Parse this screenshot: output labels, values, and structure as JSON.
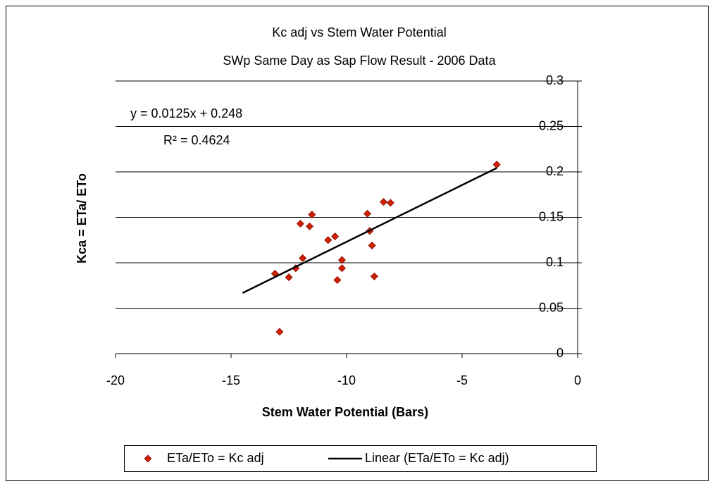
{
  "chart_data": {
    "type": "scatter",
    "title": "Kc adj vs Stem Water Potential",
    "subtitle": "SWp Same Day as Sap Flow Result - 2006 Data",
    "x_label": "Stem Water Potential (Bars)",
    "y_label": "Kca = ETa/ ETo",
    "annotations": [
      "y = 0.0125x + 0.248",
      "R² = 0.4624"
    ],
    "xlim": [
      -20,
      0
    ],
    "xticks": [
      -20,
      -15,
      -10,
      -5,
      0
    ],
    "ylim": [
      0,
      0.3
    ],
    "yticks": [
      0,
      0.05,
      0.1,
      0.15,
      0.2,
      0.25,
      0.3
    ],
    "grid": true,
    "legend": "bottom",
    "series": [
      {
        "name": "ETa/ETo = Kc adj",
        "color": "#cc2200",
        "marker": "diamond",
        "x": [
          -3.5,
          -8.4,
          -8.1,
          -9.1,
          -11.5,
          -12.0,
          -11.6,
          -9.0,
          -10.5,
          -10.8,
          -8.9,
          -11.9,
          -10.2,
          -10.2,
          -12.2,
          -13.1,
          -12.5,
          -8.8,
          -10.4,
          -12.9
        ],
        "values": [
          0.208,
          0.167,
          0.166,
          0.154,
          0.153,
          0.143,
          0.14,
          0.135,
          0.129,
          0.125,
          0.119,
          0.105,
          0.103,
          0.094,
          0.094,
          0.088,
          0.084,
          0.085,
          0.081,
          0.024
        ]
      },
      {
        "name": "Linear (ETa/ETo = Kc adj)",
        "color": "#000000",
        "marker": "line",
        "x": [
          -14.5,
          -3.5
        ],
        "values": [
          0.0668,
          0.2043
        ]
      }
    ]
  }
}
